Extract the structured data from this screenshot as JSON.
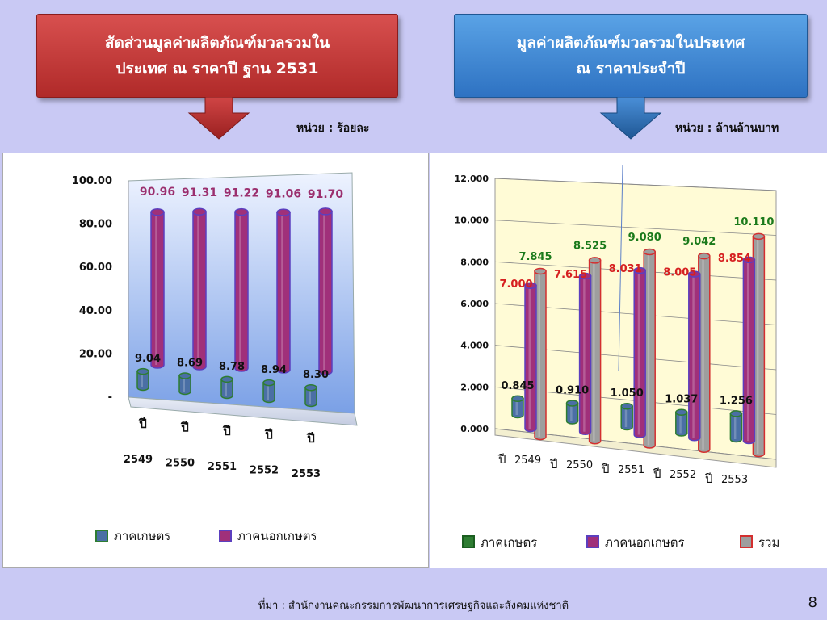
{
  "left_header": {
    "line1": "สัดส่วนมูลค่าผลิตภัณฑ์มวลรวมใน",
    "line2": "ประเทศ ณ ราคาปี ฐาน 2531"
  },
  "right_header": {
    "line1": "มูลค่าผลิตภัณฑ์มวลรวมในประเทศ",
    "line2": "ณ ราคาประจำปี"
  },
  "left_unit": "หน่วย : ร้อยละ",
  "right_unit": "หน่วย : ล้านล้านบาท",
  "source": "ที่มา : สำนักงานคณะกรรมการพัฒนาการเศรษฐกิจและสังคมแห่งชาติ",
  "page_number": "8",
  "colors": {
    "agri": "#4a6fa5",
    "agri_border": "#2e7d32",
    "nonagri": "#a0307a",
    "nonagri_border": "#5b3fbf",
    "total": "#9e9e9e",
    "total_border": "#d32f2f"
  },
  "chart_data": [
    {
      "type": "bar",
      "categories": [
        "ปี 2549",
        "ปี 2550",
        "ปี 2551",
        "ปี 2552",
        "ปี 2553"
      ],
      "category_parts": [
        [
          "ปี",
          "2549"
        ],
        [
          "ปี",
          "2550"
        ],
        [
          "ปี",
          "2551"
        ],
        [
          "ปี",
          "2552"
        ],
        [
          "ปี",
          "2553"
        ]
      ],
      "series": [
        {
          "name": "ภาคเกษตร",
          "values": [
            9.04,
            8.69,
            8.78,
            8.94,
            8.3
          ],
          "labels": [
            "9.04",
            "8.69",
            "8.78",
            "8.94",
            "8.30"
          ]
        },
        {
          "name": "ภาคนอกเกษตร",
          "values": [
            90.96,
            91.31,
            91.22,
            91.06,
            91.7
          ],
          "labels": [
            "90.96",
            "91.31",
            "91.22",
            "91.06",
            "91.70"
          ]
        }
      ],
      "yticks": [
        "-",
        "20.00",
        "40.00",
        "60.00",
        "80.00",
        "100.00"
      ],
      "ylim": [
        0,
        100
      ],
      "legend": "bottom"
    },
    {
      "type": "bar",
      "categories": [
        "ปี 2549",
        "ปี 2550",
        "ปี 2551",
        "ปี 2552",
        "ปี 2553"
      ],
      "category_parts": [
        [
          "ปี",
          "2549"
        ],
        [
          "ปี",
          "2550"
        ],
        [
          "ปี",
          "2551"
        ],
        [
          "ปี",
          "2552"
        ],
        [
          "ปี",
          "2553"
        ]
      ],
      "series": [
        {
          "name": "ภาคเกษตร",
          "values": [
            0.845,
            0.91,
            1.05,
            1.037,
            1.256
          ],
          "labels": [
            "0.845",
            "0.910",
            "1.050",
            "1.037",
            "1.256"
          ]
        },
        {
          "name": "ภาคนอกเกษตร",
          "values": [
            7.0,
            7.615,
            8.031,
            8.005,
            8.854
          ],
          "labels": [
            "7.000",
            "7.615",
            "8.031",
            "8.005",
            "8.854"
          ]
        },
        {
          "name": "รวม",
          "values": [
            7.845,
            8.525,
            9.08,
            9.042,
            10.11
          ],
          "labels": [
            "7.845",
            "8.525",
            "9.080",
            "9.042",
            "10.110"
          ]
        }
      ],
      "yticks": [
        "0.000",
        "2.000",
        "4.000",
        "6.000",
        "8.000",
        "10.000",
        "12.000"
      ],
      "ylim": [
        0,
        12
      ],
      "legend": "bottom"
    }
  ]
}
